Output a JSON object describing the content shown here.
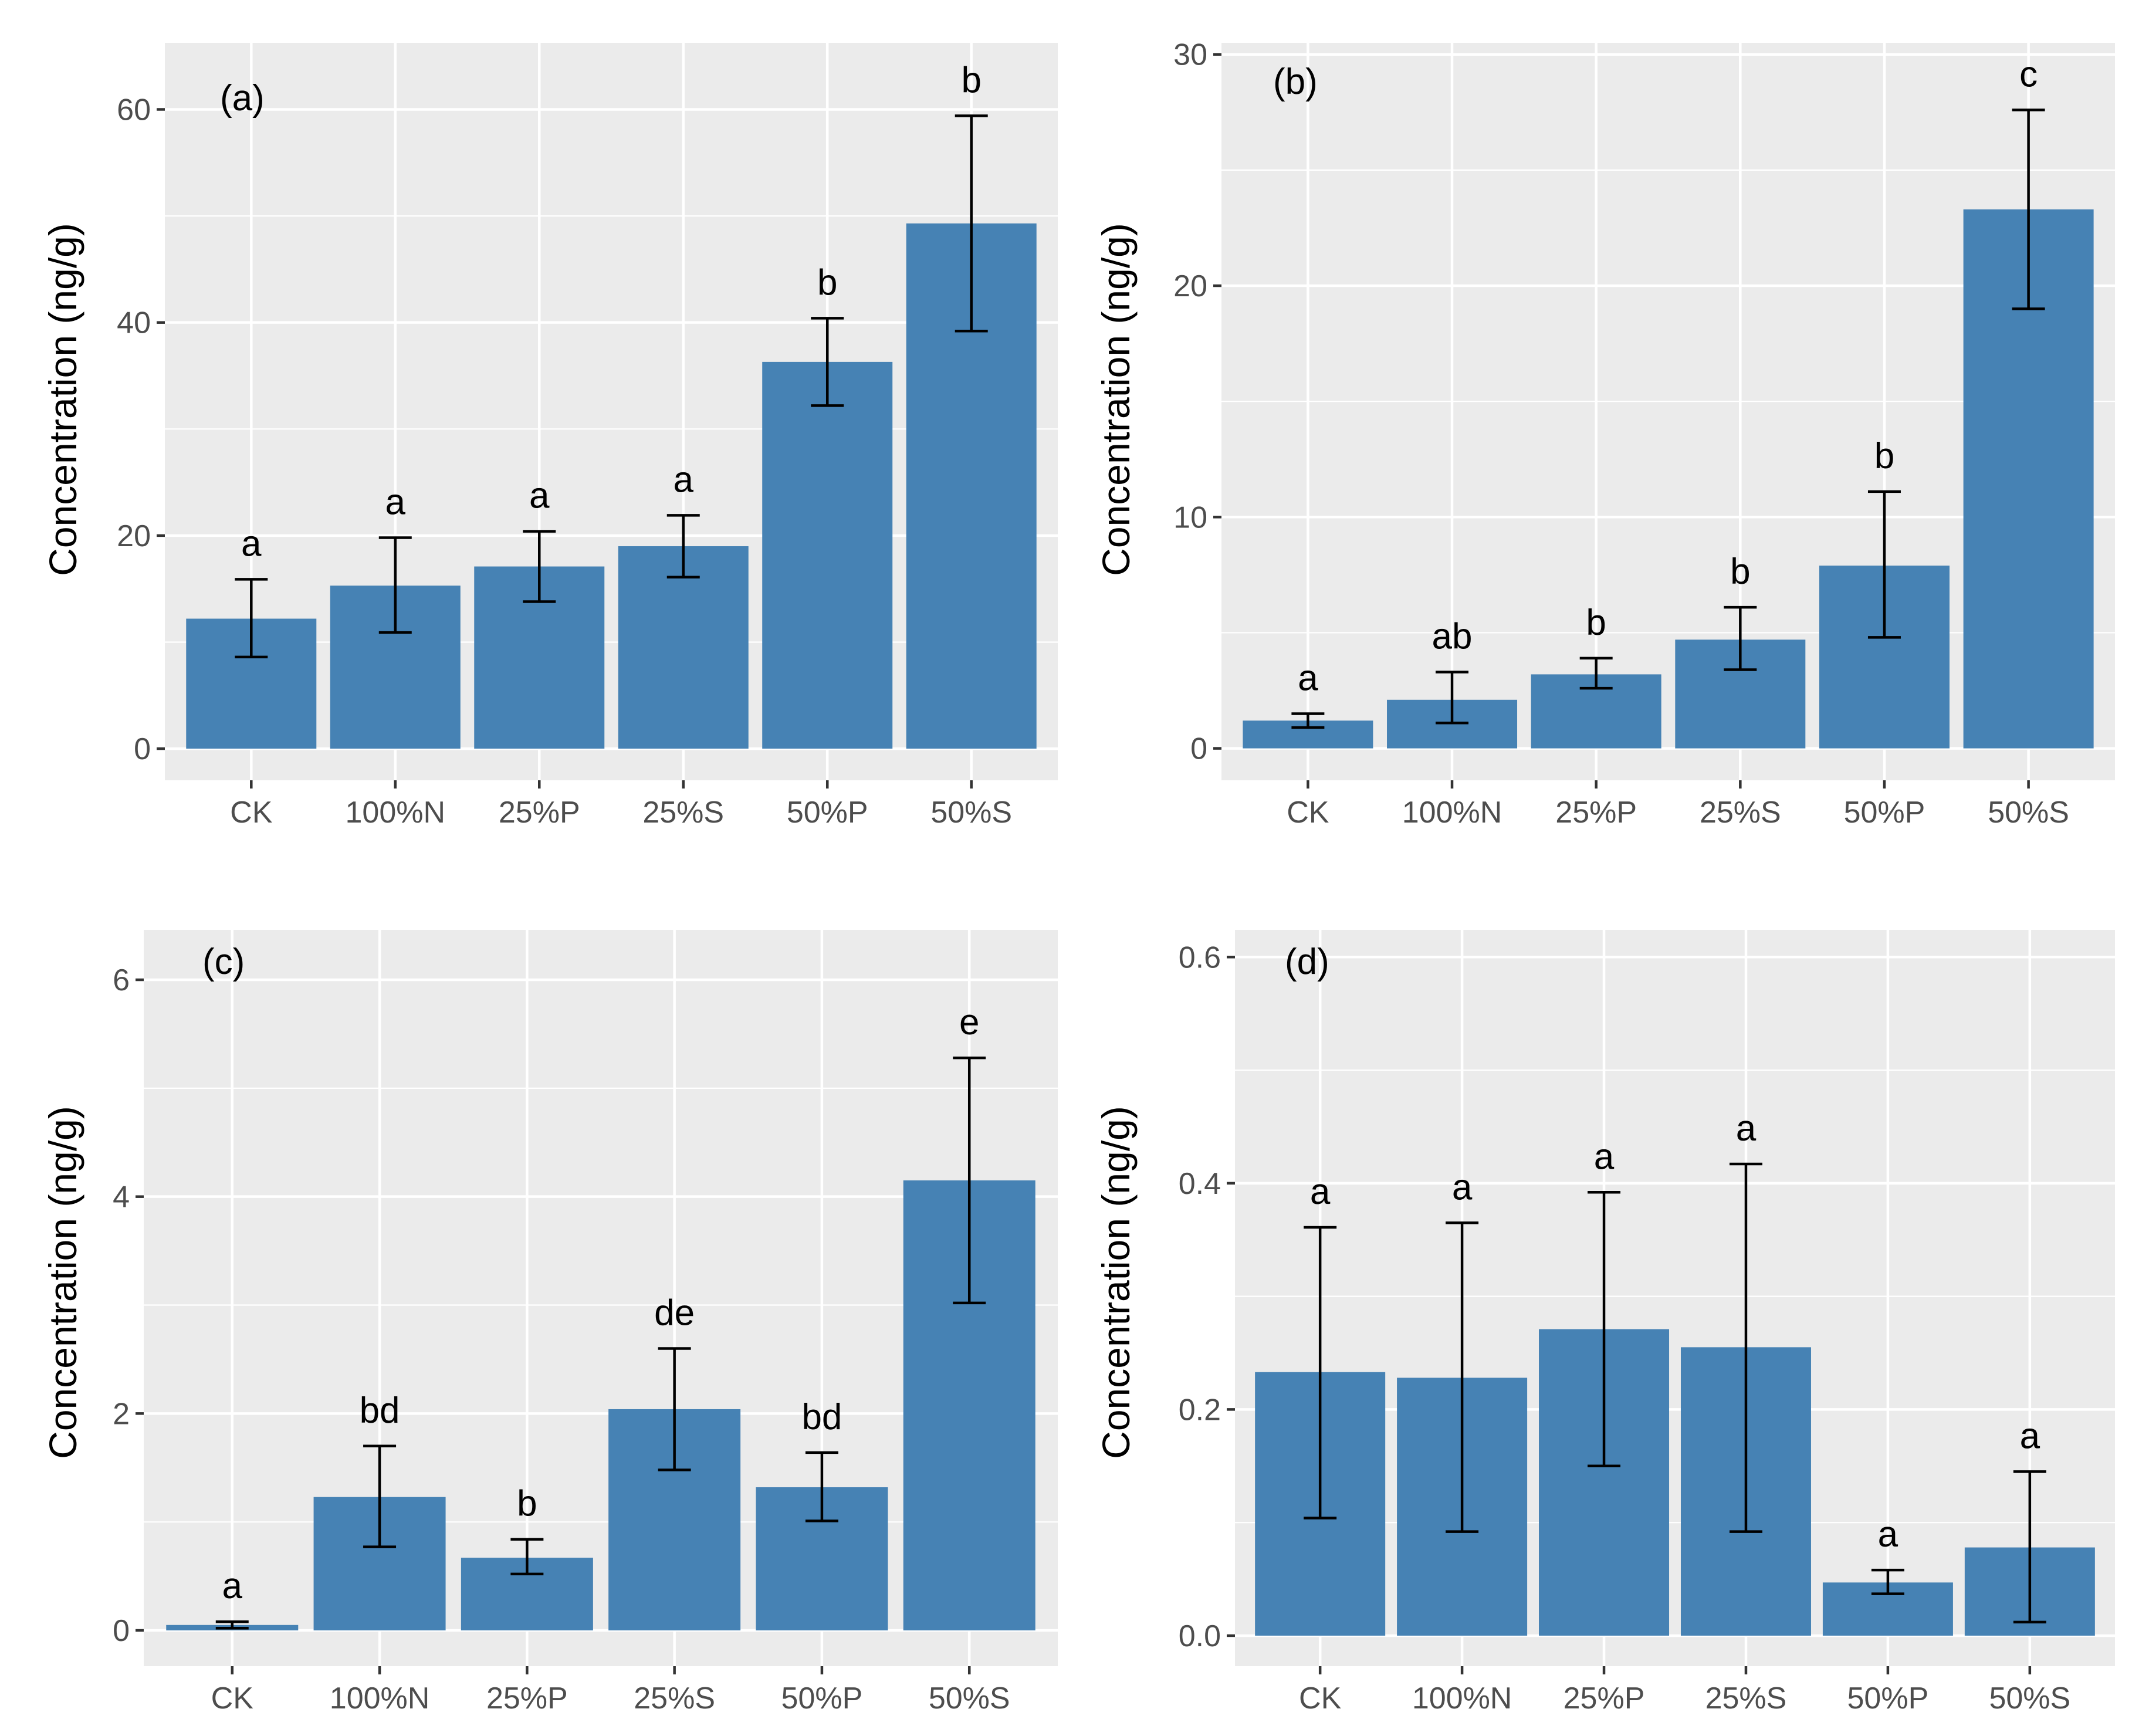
{
  "colors": {
    "bar": "#4682b4",
    "panel_bg": "#ebebeb",
    "grid": "#ffffff",
    "tick_text": "#4d4d4d"
  },
  "chart_data": [
    {
      "type": "bar",
      "tag": "(a)",
      "ylabel": "Concentration (ng/g)",
      "categories": [
        "CK",
        "100%N",
        "25%P",
        "25%S",
        "50%P",
        "50%S"
      ],
      "values": [
        12.2,
        15.3,
        17.1,
        19.0,
        36.3,
        49.3
      ],
      "error_low": [
        8.6,
        10.9,
        13.8,
        16.1,
        32.2,
        39.2
      ],
      "error_high": [
        15.9,
        19.8,
        20.4,
        21.9,
        40.4,
        59.4
      ],
      "labels": [
        "a",
        "a",
        "a",
        "a",
        "b",
        "b"
      ],
      "yticks": [
        0,
        20,
        40,
        60
      ],
      "ytick_labels": [
        "0",
        "20",
        "40",
        "60"
      ],
      "ylim": [
        -2.97,
        66.25
      ]
    },
    {
      "type": "bar",
      "tag": "(b)",
      "ylabel": "Concentration (ng/g)",
      "categories": [
        "CK",
        "100%N",
        "25%P",
        "25%S",
        "50%P",
        "50%S"
      ],
      "values": [
        1.2,
        2.1,
        3.2,
        4.7,
        7.9,
        23.3
      ],
      "error_low": [
        0.9,
        1.1,
        2.6,
        3.4,
        4.8,
        19.0
      ],
      "error_high": [
        1.5,
        3.3,
        3.9,
        6.1,
        11.1,
        27.6
      ],
      "labels": [
        "a",
        "ab",
        "b",
        "b",
        "b",
        "c"
      ],
      "yticks": [
        0,
        10,
        20,
        30
      ],
      "ytick_labels": [
        "0",
        "10",
        "20",
        "30"
      ],
      "ylim": [
        -1.38,
        30.5
      ]
    },
    {
      "type": "bar",
      "tag": "(c)",
      "ylabel": "Concentration (ng/g)",
      "categories": [
        "CK",
        "100%N",
        "25%P",
        "25%S",
        "50%P",
        "50%S"
      ],
      "values": [
        0.05,
        1.23,
        0.67,
        2.04,
        1.32,
        4.15
      ],
      "error_low": [
        0.02,
        0.77,
        0.52,
        1.48,
        1.01,
        3.02
      ],
      "error_high": [
        0.08,
        1.7,
        0.84,
        2.6,
        1.64,
        5.28
      ],
      "labels": [
        "a",
        "bd",
        "b",
        "de",
        "bd",
        "e"
      ],
      "yticks": [
        0,
        2,
        4,
        6
      ],
      "ytick_labels": [
        "0",
        "2",
        "4",
        "6"
      ],
      "ylim": [
        -0.33,
        6.46
      ]
    },
    {
      "type": "bar",
      "tag": "(d)",
      "ylabel": "Concentration (ng/g)",
      "categories": [
        "CK",
        "100%N",
        "25%P",
        "25%S",
        "50%P",
        "50%S"
      ],
      "values": [
        0.233,
        0.228,
        0.271,
        0.255,
        0.047,
        0.078
      ],
      "error_low": [
        0.104,
        0.092,
        0.15,
        0.092,
        0.037,
        0.012
      ],
      "error_high": [
        0.361,
        0.365,
        0.392,
        0.417,
        0.058,
        0.145
      ],
      "labels": [
        "a",
        "a",
        "a",
        "a",
        "a",
        "a"
      ],
      "yticks": [
        0.0,
        0.2,
        0.4,
        0.6
      ],
      "ytick_labels": [
        "0.0",
        "0.2",
        "0.4",
        "0.6"
      ],
      "ylim": [
        -0.027,
        0.624
      ]
    }
  ]
}
